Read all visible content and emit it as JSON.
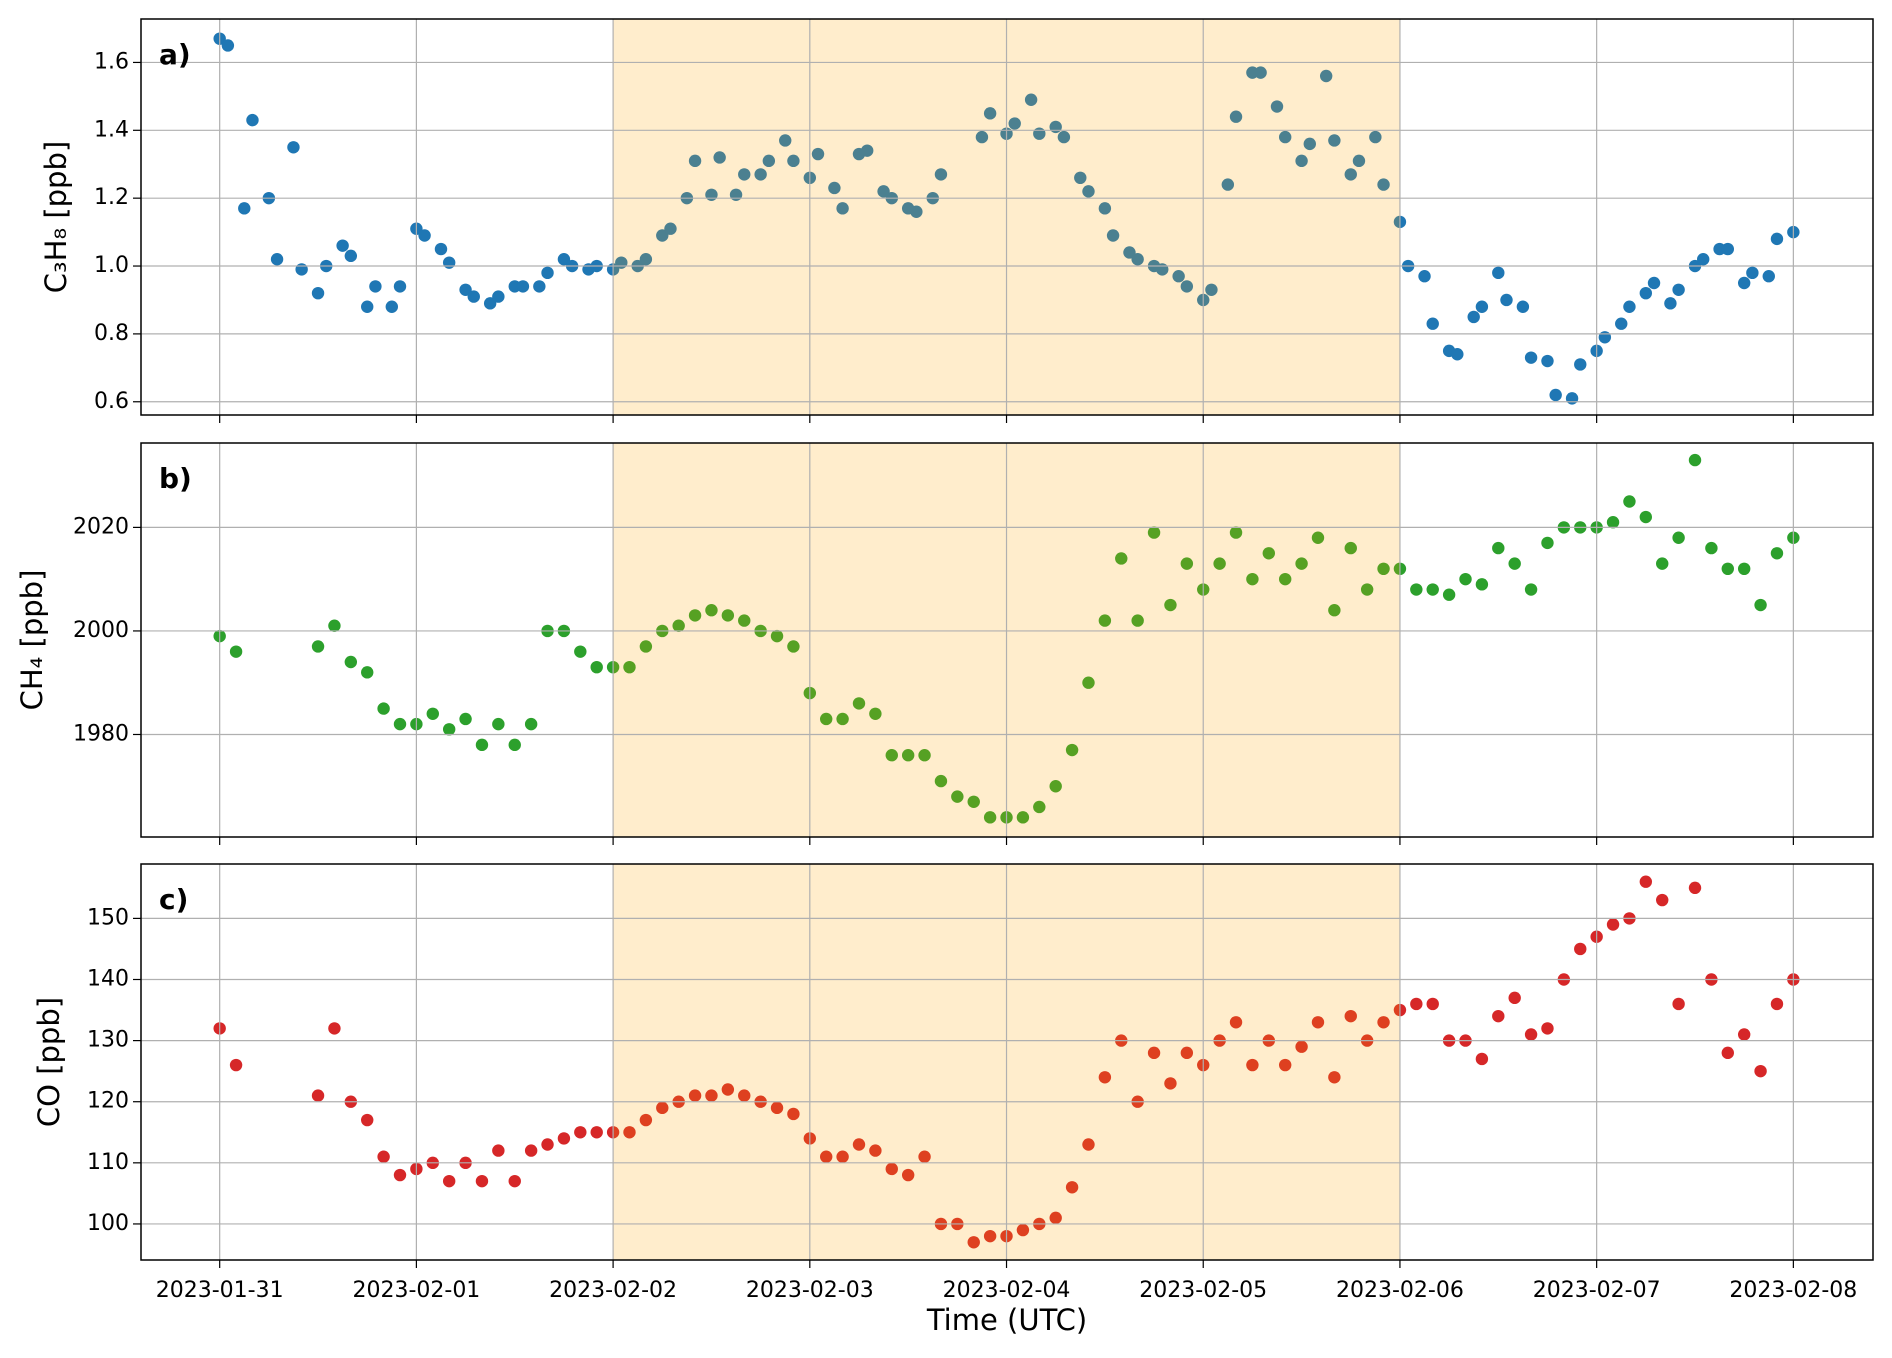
{
  "chart_data": [
    {
      "type": "scatter",
      "label": "a)",
      "ylabel": "C₃H₈ [ppb]",
      "color": "#1f77b4",
      "grid": true,
      "shade": {
        "from": "2023-02-02",
        "to": "2023-02-06",
        "color": "#ffa500",
        "alpha": 0.2
      },
      "xlim": [
        "2023-01-30 14:24",
        "2023-02-08 09:43"
      ],
      "xticks": [
        "2023-01-31",
        "2023-02-01",
        "2023-02-02",
        "2023-02-03",
        "2023-02-04",
        "2023-02-05",
        "2023-02-06",
        "2023-02-07",
        "2023-02-08"
      ],
      "ylim": [
        0.561,
        1.728
      ],
      "yticks": [
        0.6,
        0.8,
        {
          "value": 1,
          "label": "1.0"
        },
        1.2,
        1.4,
        1.6
      ],
      "x": [
        "2023-01-31 00:00",
        "2023-01-31 01:00",
        "2023-01-31 03:00",
        "2023-01-31 04:00",
        "2023-01-31 06:00",
        "2023-01-31 07:00",
        "2023-01-31 09:00",
        "2023-01-31 10:00",
        "2023-01-31 12:00",
        "2023-01-31 13:00",
        "2023-01-31 15:00",
        "2023-01-31 16:00",
        "2023-01-31 18:00",
        "2023-01-31 19:00",
        "2023-01-31 21:00",
        "2023-01-31 22:00",
        "2023-02-01 00:00",
        "2023-02-01 01:00",
        "2023-02-01 03:00",
        "2023-02-01 04:00",
        "2023-02-01 06:00",
        "2023-02-01 07:00",
        "2023-02-01 09:00",
        "2023-02-01 10:00",
        "2023-02-01 12:00",
        "2023-02-01 13:00",
        "2023-02-01 15:00",
        "2023-02-01 16:00",
        "2023-02-01 18:00",
        "2023-02-01 19:00",
        "2023-02-01 21:00",
        "2023-02-01 22:00",
        "2023-02-02 00:00",
        "2023-02-02 01:00",
        "2023-02-02 03:00",
        "2023-02-02 04:00",
        "2023-02-02 06:00",
        "2023-02-02 07:00",
        "2023-02-02 09:00",
        "2023-02-02 10:00",
        "2023-02-02 12:00",
        "2023-02-02 13:00",
        "2023-02-02 15:00",
        "2023-02-02 16:00",
        "2023-02-02 18:00",
        "2023-02-02 19:00",
        "2023-02-02 21:00",
        "2023-02-02 22:00",
        "2023-02-03 00:00",
        "2023-02-03 01:00",
        "2023-02-03 03:00",
        "2023-02-03 04:00",
        "2023-02-03 06:00",
        "2023-02-03 07:00",
        "2023-02-03 09:00",
        "2023-02-03 10:00",
        "2023-02-03 12:00",
        "2023-02-03 13:00",
        "2023-02-03 15:00",
        "2023-02-03 16:00",
        "2023-02-03 21:00",
        "2023-02-03 22:00",
        "2023-02-04 00:00",
        "2023-02-04 01:00",
        "2023-02-04 03:00",
        "2023-02-04 04:00",
        "2023-02-04 06:00",
        "2023-02-04 07:00",
        "2023-02-04 09:00",
        "2023-02-04 10:00",
        "2023-02-04 12:00",
        "2023-02-04 13:00",
        "2023-02-04 15:00",
        "2023-02-04 16:00",
        "2023-02-04 18:00",
        "2023-02-04 19:00",
        "2023-02-04 21:00",
        "2023-02-04 22:00",
        "2023-02-05 00:00",
        "2023-02-05 01:00",
        "2023-02-05 03:00",
        "2023-02-05 04:00",
        "2023-02-05 06:00",
        "2023-02-05 07:00",
        "2023-02-05 09:00",
        "2023-02-05 10:00",
        "2023-02-05 12:00",
        "2023-02-05 13:00",
        "2023-02-05 15:00",
        "2023-02-05 16:00",
        "2023-02-05 18:00",
        "2023-02-05 19:00",
        "2023-02-05 21:00",
        "2023-02-05 22:00",
        "2023-02-06 00:00",
        "2023-02-06 01:00",
        "2023-02-06 03:00",
        "2023-02-06 04:00",
        "2023-02-06 06:00",
        "2023-02-06 07:00",
        "2023-02-06 09:00",
        "2023-02-06 10:00",
        "2023-02-06 12:00",
        "2023-02-06 13:00",
        "2023-02-06 15:00",
        "2023-02-06 16:00",
        "2023-02-06 18:00",
        "2023-02-06 19:00",
        "2023-02-06 21:00",
        "2023-02-06 22:00",
        "2023-02-07 00:00",
        "2023-02-07 01:00",
        "2023-02-07 03:00",
        "2023-02-07 04:00",
        "2023-02-07 06:00",
        "2023-02-07 07:00",
        "2023-02-07 09:00",
        "2023-02-07 10:00",
        "2023-02-07 12:00",
        "2023-02-07 13:00",
        "2023-02-07 15:00",
        "2023-02-07 16:00",
        "2023-02-07 18:00",
        "2023-02-07 19:00",
        "2023-02-07 21:00",
        "2023-02-07 22:00",
        "2023-02-08 00:00"
      ],
      "values": [
        1.67,
        1.65,
        1.17,
        1.43,
        1.2,
        1.02,
        1.35,
        0.99,
        0.92,
        1.0,
        1.06,
        1.03,
        0.88,
        0.94,
        0.88,
        0.94,
        1.11,
        1.09,
        1.05,
        1.01,
        0.93,
        0.91,
        0.89,
        0.91,
        0.94,
        0.94,
        0.94,
        0.98,
        1.02,
        1.0,
        0.99,
        1.0,
        0.99,
        1.01,
        1.0,
        1.02,
        1.09,
        1.11,
        1.2,
        1.31,
        1.21,
        1.32,
        1.21,
        1.27,
        1.27,
        1.31,
        1.37,
        1.31,
        1.26,
        1.33,
        1.23,
        1.17,
        1.33,
        1.34,
        1.22,
        1.2,
        1.17,
        1.16,
        1.2,
        1.27,
        1.38,
        1.45,
        1.39,
        1.42,
        1.49,
        1.39,
        1.41,
        1.38,
        1.26,
        1.22,
        1.17,
        1.09,
        1.04,
        1.02,
        1.0,
        0.99,
        0.97,
        0.94,
        0.9,
        0.93,
        1.24,
        1.44,
        1.57,
        1.57,
        1.47,
        1.38,
        1.31,
        1.36,
        1.56,
        1.37,
        1.27,
        1.31,
        1.38,
        1.24,
        1.13,
        1.0,
        0.97,
        0.83,
        0.75,
        0.74,
        0.85,
        0.88,
        0.98,
        0.9,
        0.88,
        0.73,
        0.72,
        0.62,
        0.61,
        0.71,
        0.75,
        0.79,
        0.83,
        0.88,
        0.92,
        0.95,
        0.89,
        0.93,
        1.0,
        1.02,
        1.05,
        1.05,
        0.95,
        0.98,
        0.97,
        1.08,
        1.1
      ]
    },
    {
      "type": "scatter",
      "label": "b)",
      "ylabel": "CH₄ [ppb]",
      "color": "#2ca02c",
      "grid": true,
      "shade": {
        "from": "2023-02-02",
        "to": "2023-02-06",
        "color": "#ffa500",
        "alpha": 0.2
      },
      "xlim": [
        "2023-01-30 14:24",
        "2023-02-08 09:43"
      ],
      "xticks": [
        "2023-01-31",
        "2023-02-01",
        "2023-02-02",
        "2023-02-03",
        "2023-02-04",
        "2023-02-05",
        "2023-02-06",
        "2023-02-07",
        "2023-02-08"
      ],
      "ylim": [
        1960.2,
        2036.3
      ],
      "yticks": [
        1980,
        2000,
        2020
      ],
      "x": [
        "2023-01-31 00:00",
        "2023-01-31 02:00",
        "2023-01-31 04:00",
        "2023-01-31 06:00",
        "2023-01-31 08:00",
        "2023-01-31 10:00",
        "2023-01-31 12:00",
        "2023-01-31 14:00",
        "2023-01-31 16:00",
        "2023-01-31 18:00",
        "2023-01-31 20:00",
        "2023-01-31 22:00",
        "2023-02-01 00:00",
        "2023-02-01 02:00",
        "2023-02-01 04:00",
        "2023-02-01 06:00",
        "2023-02-01 08:00",
        "2023-02-01 10:00",
        "2023-02-01 12:00",
        "2023-02-01 14:00",
        "2023-02-01 16:00",
        "2023-02-01 18:00",
        "2023-02-01 20:00",
        "2023-02-01 22:00",
        "2023-02-02 00:00",
        "2023-02-02 02:00",
        "2023-02-02 04:00",
        "2023-02-02 06:00",
        "2023-02-02 08:00",
        "2023-02-02 10:00",
        "2023-02-02 12:00",
        "2023-02-02 14:00",
        "2023-02-02 16:00",
        "2023-02-02 18:00",
        "2023-02-02 20:00",
        "2023-02-02 22:00",
        "2023-02-03 00:00",
        "2023-02-03 02:00",
        "2023-02-03 04:00",
        "2023-02-03 06:00",
        "2023-02-03 08:00",
        "2023-02-03 10:00",
        "2023-02-03 12:00",
        "2023-02-03 14:00",
        "2023-02-03 16:00",
        "2023-02-03 18:00",
        "2023-02-03 20:00",
        "2023-02-03 22:00",
        "2023-02-04 00:00",
        "2023-02-04 02:00",
        "2023-02-04 04:00",
        "2023-02-04 06:00",
        "2023-02-04 08:00",
        "2023-02-04 10:00",
        "2023-02-04 12:00",
        "2023-02-04 14:00",
        "2023-02-04 16:00",
        "2023-02-04 18:00",
        "2023-02-04 20:00",
        "2023-02-04 22:00",
        "2023-02-05 00:00",
        "2023-02-05 02:00",
        "2023-02-05 04:00",
        "2023-02-05 06:00",
        "2023-02-05 08:00",
        "2023-02-05 10:00",
        "2023-02-05 12:00",
        "2023-02-05 14:00",
        "2023-02-05 16:00",
        "2023-02-05 18:00",
        "2023-02-05 20:00",
        "2023-02-05 22:00",
        "2023-02-06 00:00",
        "2023-02-06 02:00",
        "2023-02-06 04:00",
        "2023-02-06 06:00",
        "2023-02-06 08:00",
        "2023-02-06 10:00",
        "2023-02-06 12:00",
        "2023-02-06 14:00",
        "2023-02-06 16:00",
        "2023-02-06 18:00",
        "2023-02-06 20:00",
        "2023-02-06 22:00",
        "2023-02-07 00:00",
        "2023-02-07 02:00",
        "2023-02-07 04:00",
        "2023-02-07 06:00",
        "2023-02-07 08:00",
        "2023-02-07 10:00",
        "2023-02-07 12:00",
        "2023-02-07 14:00",
        "2023-02-07 16:00",
        "2023-02-07 18:00",
        "2023-02-07 20:00",
        "2023-02-07 22:00",
        "2023-02-08 00:00"
      ],
      "values": [
        1999,
        1996,
        null,
        null,
        null,
        null,
        1997,
        2001,
        1994,
        1992,
        1985,
        1982,
        1982,
        1984,
        1981,
        1983,
        1978,
        1982,
        1978,
        1982,
        2000,
        2000,
        1996,
        1993,
        1993,
        1993,
        1997,
        2000,
        2001,
        2003,
        2004,
        2003,
        2002,
        2000,
        1999,
        1997,
        1988,
        1983,
        1983,
        1986,
        1984,
        1976,
        1976,
        1976,
        1971,
        1968,
        1967,
        1964,
        1964,
        1964,
        1966,
        1970,
        1977,
        1990,
        2002,
        2014,
        2002,
        2019,
        2005,
        2013,
        2008,
        2013,
        2019,
        2010,
        2015,
        2010,
        2013,
        2018,
        2004,
        2016,
        2008,
        2012,
        2012,
        2008,
        2008,
        2007,
        2010,
        2009,
        2016,
        2013,
        2008,
        2017,
        2020,
        2020,
        2020,
        2021,
        2025,
        2022,
        2013,
        2018,
        2033,
        2016,
        2012,
        2012,
        2005,
        2015,
        2018
      ]
    },
    {
      "type": "scatter",
      "label": "c)",
      "ylabel": "CO [ppb]",
      "xlabel": "Time (UTC)",
      "color": "#d62728",
      "grid": true,
      "shade": {
        "from": "2023-02-02",
        "to": "2023-02-06",
        "color": "#ffa500",
        "alpha": 0.2
      },
      "xlim": [
        "2023-01-30 14:24",
        "2023-02-08 09:43"
      ],
      "xticks": [
        "2023-01-31",
        "2023-02-01",
        "2023-02-02",
        "2023-02-03",
        "2023-02-04",
        "2023-02-05",
        "2023-02-06",
        "2023-02-07",
        "2023-02-08"
      ],
      "ylim": [
        94.1,
        158.9
      ],
      "yticks": [
        100,
        110,
        120,
        130,
        140,
        150
      ],
      "x": [
        "2023-01-31 00:00",
        "2023-01-31 02:00",
        "2023-01-31 04:00",
        "2023-01-31 06:00",
        "2023-01-31 08:00",
        "2023-01-31 10:00",
        "2023-01-31 12:00",
        "2023-01-31 14:00",
        "2023-01-31 16:00",
        "2023-01-31 18:00",
        "2023-01-31 20:00",
        "2023-01-31 22:00",
        "2023-02-01 00:00",
        "2023-02-01 02:00",
        "2023-02-01 04:00",
        "2023-02-01 06:00",
        "2023-02-01 08:00",
        "2023-02-01 10:00",
        "2023-02-01 12:00",
        "2023-02-01 14:00",
        "2023-02-01 16:00",
        "2023-02-01 18:00",
        "2023-02-01 20:00",
        "2023-02-01 22:00",
        "2023-02-02 00:00",
        "2023-02-02 02:00",
        "2023-02-02 04:00",
        "2023-02-02 06:00",
        "2023-02-02 08:00",
        "2023-02-02 10:00",
        "2023-02-02 12:00",
        "2023-02-02 14:00",
        "2023-02-02 16:00",
        "2023-02-02 18:00",
        "2023-02-02 20:00",
        "2023-02-02 22:00",
        "2023-02-03 00:00",
        "2023-02-03 02:00",
        "2023-02-03 04:00",
        "2023-02-03 06:00",
        "2023-02-03 08:00",
        "2023-02-03 10:00",
        "2023-02-03 12:00",
        "2023-02-03 14:00",
        "2023-02-03 16:00",
        "2023-02-03 18:00",
        "2023-02-03 20:00",
        "2023-02-03 22:00",
        "2023-02-04 00:00",
        "2023-02-04 02:00",
        "2023-02-04 04:00",
        "2023-02-04 06:00",
        "2023-02-04 08:00",
        "2023-02-04 10:00",
        "2023-02-04 12:00",
        "2023-02-04 14:00",
        "2023-02-04 16:00",
        "2023-02-04 18:00",
        "2023-02-04 20:00",
        "2023-02-04 22:00",
        "2023-02-05 00:00",
        "2023-02-05 02:00",
        "2023-02-05 04:00",
        "2023-02-05 06:00",
        "2023-02-05 08:00",
        "2023-02-05 10:00",
        "2023-02-05 12:00",
        "2023-02-05 14:00",
        "2023-02-05 16:00",
        "2023-02-05 18:00",
        "2023-02-05 20:00",
        "2023-02-05 22:00",
        "2023-02-06 00:00",
        "2023-02-06 02:00",
        "2023-02-06 04:00",
        "2023-02-06 06:00",
        "2023-02-06 08:00",
        "2023-02-06 10:00",
        "2023-02-06 12:00",
        "2023-02-06 14:00",
        "2023-02-06 16:00",
        "2023-02-06 18:00",
        "2023-02-06 20:00",
        "2023-02-06 22:00",
        "2023-02-07 00:00",
        "2023-02-07 02:00",
        "2023-02-07 04:00",
        "2023-02-07 06:00",
        "2023-02-07 08:00",
        "2023-02-07 10:00",
        "2023-02-07 12:00",
        "2023-02-07 14:00",
        "2023-02-07 16:00",
        "2023-02-07 18:00",
        "2023-02-07 20:00",
        "2023-02-07 22:00",
        "2023-02-08 00:00"
      ],
      "values": [
        132,
        126,
        null,
        null,
        null,
        null,
        121,
        132,
        120,
        117,
        111,
        108,
        109,
        110,
        107,
        110,
        107,
        112,
        107,
        112,
        113,
        114,
        115,
        115,
        115,
        115,
        117,
        119,
        120,
        121,
        121,
        122,
        121,
        120,
        119,
        118,
        114,
        111,
        111,
        113,
        112,
        109,
        108,
        111,
        100,
        100,
        97,
        98,
        98,
        99,
        100,
        101,
        106,
        113,
        124,
        130,
        120,
        128,
        123,
        128,
        126,
        130,
        133,
        126,
        130,
        126,
        129,
        133,
        124,
        134,
        130,
        133,
        135,
        136,
        136,
        130,
        130,
        127,
        134,
        137,
        131,
        132,
        140,
        145,
        147,
        149,
        150,
        156,
        153,
        136,
        155,
        140,
        128,
        131,
        125,
        136,
        140
      ]
    }
  ]
}
